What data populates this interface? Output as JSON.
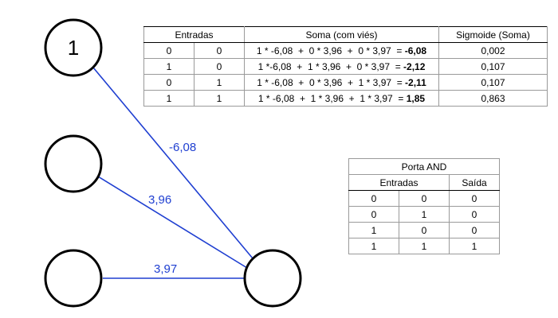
{
  "network": {
    "bias_label": "1",
    "weights": {
      "bias": "-6,08",
      "input1": "3,96",
      "input2": "3,97"
    },
    "edge_color": "#1f3fd1"
  },
  "sum_table": {
    "headers": {
      "inputs": "Entradas",
      "sum": "Soma (com viés)",
      "sigmoid": "Sigmoide (Soma)"
    },
    "rows": [
      {
        "x1": "0",
        "x2": "0",
        "sum_expr": "1 * -6,08  +  0 * 3,96  +  0 * 3,97  = ",
        "sum_result": "-6,08",
        "sigmoid": "0,002"
      },
      {
        "x1": "1",
        "x2": "0",
        "sum_expr": "1 *-6,08  +  1 * 3,96  +  0 * 3,97  = ",
        "sum_result": "-2,12",
        "sigmoid": "0,107"
      },
      {
        "x1": "0",
        "x2": "1",
        "sum_expr": "1 * -6,08  +  0 * 3,96  +  1 * 3,97  = ",
        "sum_result": "-2,11",
        "sigmoid": "0,107"
      },
      {
        "x1": "1",
        "x2": "1",
        "sum_expr": "1 * -6,08  +  1 * 3,96  +  1 * 3,97  = ",
        "sum_result": "1,85",
        "sigmoid": "0,863"
      }
    ]
  },
  "and_table": {
    "title": "Porta AND",
    "headers": {
      "inputs": "Entradas",
      "output": "Saída"
    },
    "rows": [
      {
        "a": "0",
        "b": "0",
        "out": "0"
      },
      {
        "a": "0",
        "b": "1",
        "out": "0"
      },
      {
        "a": "1",
        "b": "0",
        "out": "0"
      },
      {
        "a": "1",
        "b": "1",
        "out": "1"
      }
    ]
  }
}
